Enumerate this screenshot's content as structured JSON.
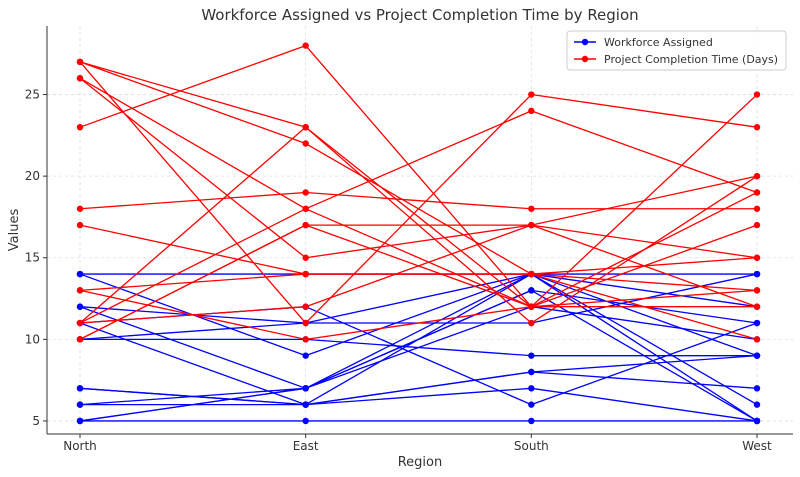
{
  "chart_data": {
    "type": "line",
    "title": "Workforce Assigned vs Project Completion Time by Region",
    "xlabel": "Region",
    "ylabel": "Values",
    "categories": [
      "North",
      "East",
      "South",
      "West"
    ],
    "ylim": [
      4.2,
      29.2
    ],
    "yticks": [
      5,
      10,
      15,
      20,
      25
    ],
    "grid": true,
    "legend_position": "top-right",
    "colors": {
      "Workforce Assigned": "#0000ff",
      "Project Completion Time (Days)": "#ff0000"
    },
    "series": [
      {
        "name": "Workforce Assigned",
        "lines": [
          [
            14,
            14,
            14,
            14
          ],
          [
            5,
            7,
            14,
            5
          ],
          [
            6,
            7,
            13,
            11
          ],
          [
            11,
            6,
            14,
            9
          ],
          [
            7,
            6,
            8,
            9
          ],
          [
            12,
            11,
            14,
            12
          ],
          [
            10,
            10,
            9,
            9
          ],
          [
            14,
            9,
            14,
            6
          ],
          [
            5,
            7,
            13,
            5
          ],
          [
            7,
            6,
            8,
            7
          ],
          [
            11,
            12,
            6,
            11
          ],
          [
            5,
            5,
            5,
            5
          ],
          [
            6,
            6,
            7,
            5
          ],
          [
            12,
            7,
            12,
            10
          ],
          [
            10,
            11,
            11,
            14
          ]
        ]
      },
      {
        "name": "Project Completion Time (Days)",
        "lines": [
          [
            27,
            23,
            11,
            20
          ],
          [
            26,
            15,
            17,
            12
          ],
          [
            23,
            28,
            12,
            25
          ],
          [
            18,
            19,
            18,
            18
          ],
          [
            17,
            14,
            14,
            13
          ],
          [
            27,
            11,
            25,
            23
          ],
          [
            13,
            14,
            14,
            15
          ],
          [
            11,
            18,
            24,
            19
          ],
          [
            10,
            17,
            17,
            15
          ],
          [
            27,
            22,
            14,
            10
          ],
          [
            13,
            10,
            12,
            17
          ],
          [
            11,
            23,
            12,
            19
          ],
          [
            26,
            18,
            12,
            12
          ],
          [
            11,
            12,
            17,
            20
          ],
          [
            10,
            17,
            12,
            13
          ]
        ]
      }
    ]
  }
}
